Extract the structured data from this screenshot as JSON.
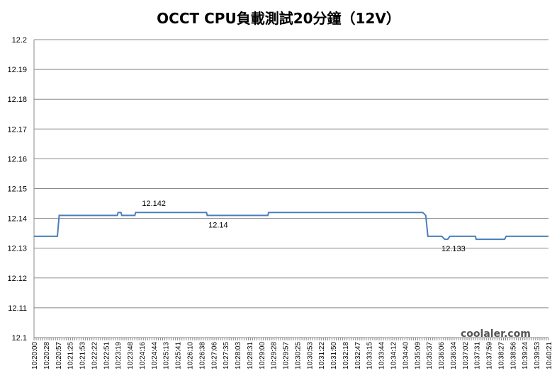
{
  "chart_data": {
    "type": "line",
    "title": "OCCT CPU負載測試20分鐘（12V）",
    "xlabel": "",
    "ylabel": "",
    "ylim": [
      12.1,
      12.2
    ],
    "yticks": [
      "12.1",
      "12.11",
      "12.12",
      "12.13",
      "12.14",
      "12.15",
      "12.16",
      "12.17",
      "12.18",
      "12.19",
      "12.2"
    ],
    "xtick_labels": [
      "10:20:00",
      "10:20:28",
      "10:20:57",
      "10:21:25",
      "10:21:53",
      "10:22:22",
      "10:22:51",
      "10:23:19",
      "10:23:48",
      "10:24:16",
      "10:24:44",
      "10:25:13",
      "10:25:41",
      "10:26:10",
      "10:26:38",
      "10:27:06",
      "10:27:35",
      "10:28:03",
      "10:28:31",
      "10:29:00",
      "10:29:28",
      "10:29:57",
      "10:30:25",
      "10:30:53",
      "10:31:22",
      "10:31:50",
      "10:32:18",
      "10:32:47",
      "10:33:15",
      "10:33:44",
      "10:34:12",
      "10:34:40",
      "10:35:09",
      "10:35:37",
      "10:36:06",
      "10:36:34",
      "10:37:02",
      "10:37:31",
      "10:37:59",
      "10:38:27",
      "10:38:56",
      "10:39:24",
      "10:39:53",
      "10:40:21"
    ],
    "grid": true,
    "legend": "none",
    "line_color": "#4a7ebb",
    "series": [
      {
        "points": [
          [
            0.0,
            12.134
          ],
          [
            1.6,
            12.134
          ],
          [
            1.72,
            12.141
          ],
          [
            5.7,
            12.141
          ],
          [
            5.75,
            12.142
          ],
          [
            5.95,
            12.142
          ],
          [
            6.0,
            12.141
          ],
          [
            6.9,
            12.141
          ],
          [
            6.95,
            12.142
          ],
          [
            11.8,
            12.142
          ],
          [
            11.85,
            12.141
          ],
          [
            16.0,
            12.141
          ],
          [
            16.05,
            12.142
          ],
          [
            26.6,
            12.142
          ],
          [
            26.8,
            12.141
          ],
          [
            26.95,
            12.134
          ],
          [
            27.9,
            12.134
          ],
          [
            28.1,
            12.133
          ],
          [
            28.3,
            12.133
          ],
          [
            28.45,
            12.134
          ],
          [
            30.2,
            12.134
          ],
          [
            30.25,
            12.133
          ],
          [
            32.2,
            12.133
          ],
          [
            32.3,
            12.134
          ],
          [
            35.2,
            12.134
          ]
        ]
      }
    ],
    "annotations": [
      {
        "text": "12.142",
        "x": 8.2,
        "y": 12.142,
        "pos": "above"
      },
      {
        "text": "12.14",
        "x": 12.6,
        "y": 12.141,
        "pos": "below"
      },
      {
        "text": "12.133",
        "x": 28.7,
        "y": 12.133,
        "pos": "below"
      }
    ]
  },
  "watermark": "coolaler.com"
}
